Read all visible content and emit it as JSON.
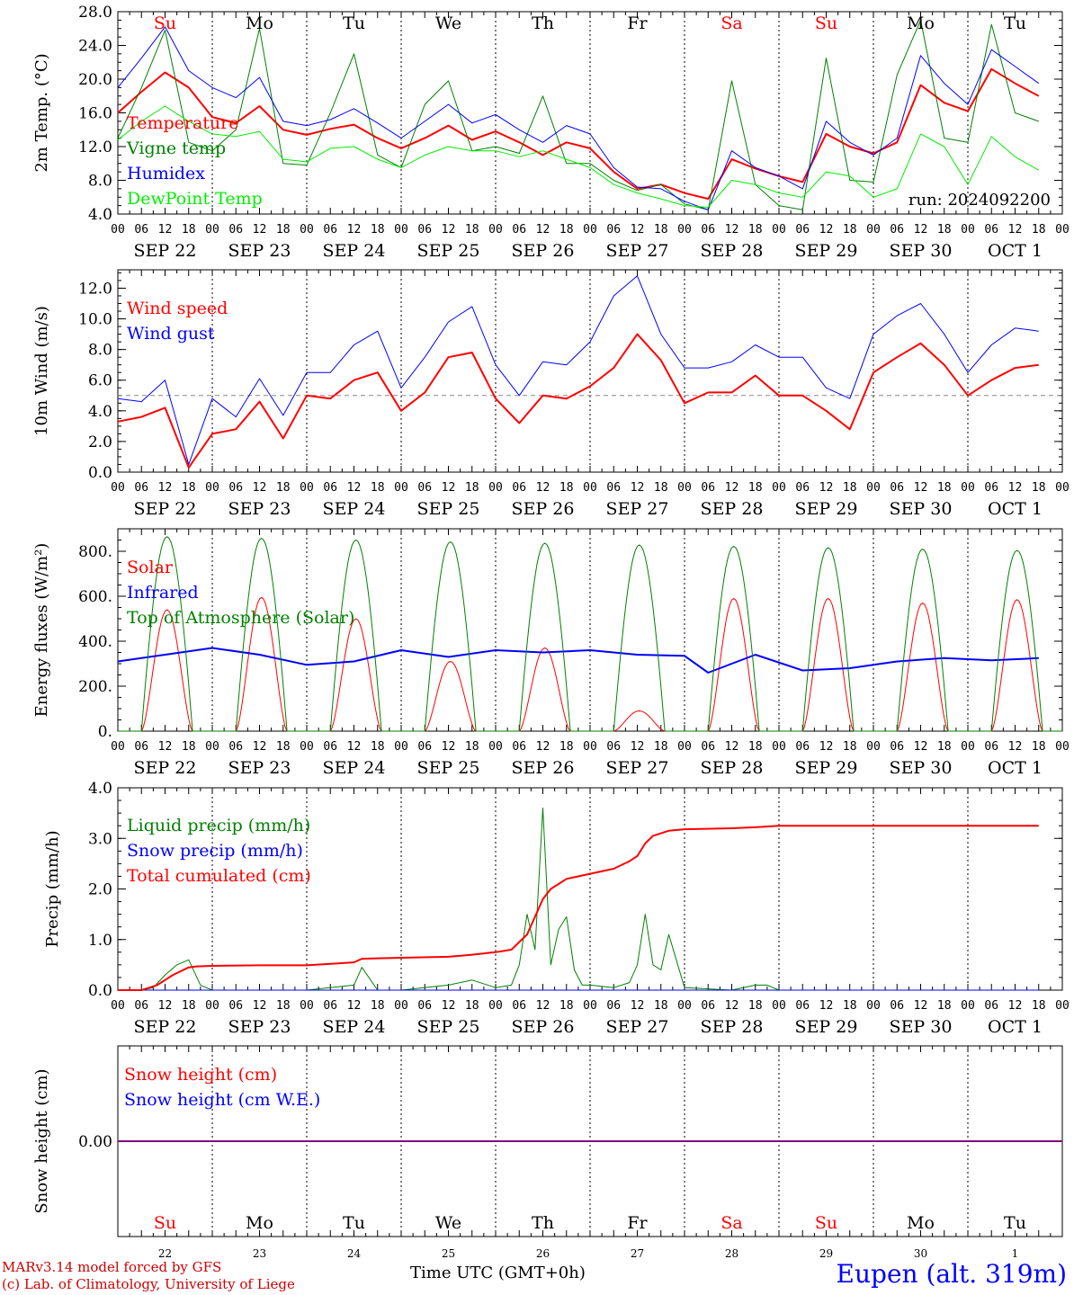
{
  "days": {
    "abbr": [
      "Su",
      "Mo",
      "Tu",
      "We",
      "Th",
      "Fr",
      "Sa",
      "Su",
      "Mo",
      "Tu"
    ],
    "weekend": [
      true,
      false,
      false,
      false,
      false,
      false,
      true,
      true,
      false,
      false
    ],
    "dates": [
      "SEP 22",
      "SEP 23",
      "SEP 24",
      "SEP 25",
      "SEP 26",
      "SEP 27",
      "SEP 28",
      "SEP 29",
      "SEP 30",
      "OCT 1"
    ],
    "numbers": [
      "22",
      "23",
      "24",
      "25",
      "26",
      "27",
      "28",
      "29",
      "30",
      "1"
    ],
    "hour_ticks": [
      "00",
      "06",
      "12",
      "18"
    ],
    "end_tick": "00"
  },
  "chart_data": [
    {
      "type": "line",
      "ylabel": "2m Temp. (°C)",
      "ylim": [
        4,
        28
      ],
      "yticks": [
        "4.0",
        "8.0",
        "12.0",
        "16.0",
        "20.0",
        "24.0",
        "28.0"
      ],
      "annotation": "run: 2024092200",
      "grid": "daily vertical dotted lines",
      "legend_position": "top-left",
      "series": [
        {
          "name": "Temperature",
          "color": "#ff0000",
          "width": 2,
          "x": [
            0,
            6,
            12,
            18,
            24,
            30,
            36,
            42,
            48,
            54,
            60,
            66,
            72,
            78,
            84,
            90,
            96,
            102,
            108,
            114,
            120,
            126,
            132,
            138,
            144,
            150,
            156,
            162,
            168,
            174,
            180,
            186,
            192,
            198,
            204,
            210,
            216,
            222,
            228,
            234
          ],
          "values": [
            16.0,
            18.5,
            20.8,
            19.0,
            15.5,
            14.8,
            16.8,
            14.0,
            13.4,
            14.1,
            14.6,
            13.0,
            11.8,
            13.0,
            14.5,
            12.8,
            13.8,
            12.5,
            11.0,
            12.5,
            11.8,
            9.0,
            7.0,
            7.5,
            6.5,
            5.8,
            10.5,
            9.4,
            8.5,
            7.8,
            13.5,
            12.0,
            11.2,
            12.5,
            19.3,
            17.2,
            16.2,
            21.2,
            19.5,
            18.0
          ]
        },
        {
          "name": "Vigne temp",
          "color": "#008000",
          "width": 1,
          "x": [
            0,
            6,
            12,
            18,
            24,
            30,
            36,
            42,
            48,
            54,
            60,
            66,
            72,
            78,
            84,
            90,
            96,
            102,
            108,
            114,
            120,
            126,
            132,
            138,
            144,
            150,
            156,
            162,
            168,
            174,
            180,
            186,
            192,
            198,
            204,
            210,
            216,
            222,
            228,
            234
          ],
          "values": [
            13.0,
            19.0,
            25.8,
            12.5,
            11.5,
            14.0,
            26.0,
            10.0,
            9.8,
            16.0,
            23.0,
            11.0,
            9.5,
            17.0,
            19.8,
            11.5,
            12.0,
            11.2,
            18.0,
            10.0,
            10.0,
            8.0,
            6.8,
            7.5,
            5.2,
            4.5,
            19.8,
            7.5,
            5.0,
            4.5,
            22.5,
            8.0,
            7.8,
            20.5,
            27.0,
            13.0,
            12.5,
            26.5,
            16.0,
            15.0
          ]
        },
        {
          "name": "Humidex",
          "color": "#0000ff",
          "width": 1,
          "x": [
            0,
            6,
            12,
            18,
            24,
            30,
            36,
            42,
            48,
            54,
            60,
            66,
            72,
            78,
            84,
            90,
            96,
            102,
            108,
            114,
            120,
            126,
            132,
            138,
            144,
            150,
            156,
            162,
            168,
            174,
            180,
            186,
            192,
            198,
            204,
            210,
            216,
            222,
            228,
            234
          ],
          "values": [
            19.0,
            22.5,
            26.2,
            21.0,
            19.0,
            17.8,
            20.2,
            15.0,
            14.5,
            15.2,
            16.5,
            14.8,
            13.0,
            15.0,
            17.0,
            14.8,
            15.8,
            14.0,
            12.5,
            14.5,
            13.5,
            9.5,
            7.2,
            7.0,
            5.5,
            4.5,
            11.5,
            9.5,
            8.5,
            7.0,
            15.0,
            12.5,
            11.0,
            13.0,
            22.8,
            19.5,
            17.0,
            23.5,
            21.5,
            19.5
          ]
        },
        {
          "name": "DewPoint Temp",
          "color": "#00ee00",
          "width": 1,
          "x": [
            0,
            6,
            12,
            18,
            24,
            30,
            36,
            42,
            48,
            54,
            60,
            66,
            72,
            78,
            84,
            90,
            96,
            102,
            108,
            114,
            120,
            126,
            132,
            138,
            144,
            150,
            156,
            162,
            168,
            174,
            180,
            186,
            192,
            198,
            204,
            210,
            216,
            222,
            228,
            234
          ],
          "values": [
            12.8,
            15.0,
            16.8,
            15.0,
            13.5,
            13.2,
            13.8,
            10.5,
            10.2,
            11.8,
            12.0,
            10.5,
            9.5,
            11.0,
            12.0,
            11.5,
            11.5,
            10.8,
            11.5,
            10.5,
            9.5,
            7.5,
            6.5,
            5.8,
            5.0,
            4.8,
            8.0,
            7.5,
            6.5,
            6.0,
            9.0,
            8.5,
            6.0,
            7.0,
            13.5,
            12.0,
            7.5,
            13.2,
            10.8,
            9.2
          ]
        }
      ]
    },
    {
      "type": "line",
      "ylabel": "10m Wind (m/s)",
      "ylim": [
        0,
        13.2
      ],
      "yticks": [
        "0.0",
        "2.0",
        "4.0",
        "6.0",
        "8.0",
        "10.0",
        "12.0"
      ],
      "reference_line": 5.0,
      "legend_position": "top-left",
      "series": [
        {
          "name": "Wind speed",
          "color": "#ff0000",
          "width": 2,
          "x": [
            0,
            6,
            12,
            18,
            24,
            30,
            36,
            42,
            48,
            54,
            60,
            66,
            72,
            78,
            84,
            90,
            96,
            102,
            108,
            114,
            120,
            126,
            132,
            138,
            144,
            150,
            156,
            162,
            168,
            174,
            180,
            186,
            192,
            198,
            204,
            210,
            216,
            222,
            228,
            234
          ],
          "values": [
            3.3,
            3.6,
            4.2,
            0.3,
            2.5,
            2.8,
            4.6,
            2.2,
            5.0,
            4.8,
            6.0,
            6.5,
            4.0,
            5.2,
            7.5,
            7.8,
            4.8,
            3.2,
            5.0,
            4.8,
            5.6,
            6.8,
            9.0,
            7.3,
            4.5,
            5.2,
            5.2,
            6.3,
            5.0,
            5.0,
            4.0,
            2.8,
            6.5,
            7.5,
            8.4,
            7.0,
            5.0,
            6.0,
            6.8,
            7.0
          ]
        },
        {
          "name": "Wind gust",
          "color": "#0000ff",
          "width": 1,
          "x": [
            0,
            6,
            12,
            18,
            24,
            30,
            36,
            42,
            48,
            54,
            60,
            66,
            72,
            78,
            84,
            90,
            96,
            102,
            108,
            114,
            120,
            126,
            132,
            138,
            144,
            150,
            156,
            162,
            168,
            174,
            180,
            186,
            192,
            198,
            204,
            210,
            216,
            222,
            228,
            234
          ],
          "values": [
            4.8,
            4.6,
            6.0,
            0.5,
            4.8,
            3.6,
            6.1,
            3.7,
            6.5,
            6.5,
            8.3,
            9.2,
            5.5,
            7.5,
            9.8,
            10.8,
            7.0,
            5.0,
            7.2,
            7.0,
            8.5,
            11.5,
            12.8,
            9.0,
            6.8,
            6.8,
            7.2,
            8.3,
            7.5,
            7.5,
            5.5,
            4.8,
            9.0,
            10.2,
            11.0,
            9.0,
            6.5,
            8.3,
            9.4,
            9.2
          ]
        }
      ]
    },
    {
      "type": "line",
      "ylabel": "Energy fluxes (W/m²)",
      "ylim": [
        0,
        900
      ],
      "yticks": [
        "0.",
        "200.",
        "400.",
        "600.",
        "800."
      ],
      "legend_position": "top-left",
      "series": [
        {
          "name": "Solar",
          "color": "#ff0000",
          "width": 1,
          "peaks": [
            540,
            595,
            500,
            310,
            370,
            90,
            590,
            590,
            570,
            585
          ]
        },
        {
          "name": "Infrared",
          "color": "#0000ff",
          "width": 2,
          "x": [
            0,
            12,
            24,
            36,
            48,
            60,
            72,
            84,
            96,
            108,
            120,
            132,
            144,
            150,
            162,
            174,
            186,
            198,
            210,
            222,
            234
          ],
          "values": [
            310,
            340,
            370,
            340,
            295,
            310,
            360,
            330,
            360,
            350,
            360,
            340,
            335,
            260,
            340,
            270,
            280,
            310,
            325,
            315,
            325
          ]
        },
        {
          "name": "Top of Atmosphere (Solar)",
          "color": "#008000",
          "width": 1,
          "peaks": [
            865,
            858,
            850,
            842,
            836,
            828,
            822,
            816,
            810,
            804
          ]
        }
      ]
    },
    {
      "type": "line",
      "ylabel": "Precip (mm/h)",
      "ylim": [
        0,
        4
      ],
      "yticks": [
        "0.0",
        "1.0",
        "2.0",
        "3.0",
        "4.0"
      ],
      "legend_position": "top-left",
      "series": [
        {
          "name": "Liquid precip (mm/h)",
          "color": "#008000",
          "width": 1,
          "x": [
            0,
            6,
            9,
            12,
            15,
            18,
            21,
            24,
            30,
            36,
            48,
            60,
            62,
            66,
            72,
            84,
            90,
            96,
            100,
            102,
            104,
            106,
            108,
            110,
            112,
            114,
            116,
            118,
            120,
            126,
            130,
            132,
            134,
            136,
            138,
            140,
            144,
            156,
            162,
            165,
            168,
            234
          ],
          "values": [
            0,
            0,
            0.05,
            0.3,
            0.5,
            0.6,
            0.1,
            0,
            0,
            0,
            0,
            0.1,
            0.45,
            0,
            0,
            0.1,
            0.2,
            0.05,
            0.1,
            0.5,
            1.5,
            0.8,
            3.6,
            0.5,
            1.2,
            1.45,
            0.4,
            0.1,
            0.1,
            0.05,
            0.15,
            0.5,
            1.5,
            0.5,
            0.4,
            1.1,
            0.05,
            0,
            0.1,
            0.1,
            0,
            0
          ]
        },
        {
          "name": "Snow precip (mm/h)",
          "color": "#0000ff",
          "width": 1,
          "x": [
            0,
            234
          ],
          "values": [
            0,
            0
          ]
        },
        {
          "name": "Total cumulated (cm)",
          "color": "#ff0000",
          "width": 2,
          "x": [
            0,
            6,
            10,
            14,
            18,
            20,
            24,
            36,
            48,
            60,
            62,
            66,
            72,
            84,
            90,
            96,
            100,
            104,
            108,
            110,
            114,
            120,
            126,
            130,
            132,
            134,
            136,
            140,
            144,
            156,
            162,
            168,
            234
          ],
          "values": [
            0,
            0,
            0.1,
            0.3,
            0.45,
            0.47,
            0.48,
            0.49,
            0.49,
            0.55,
            0.62,
            0.63,
            0.64,
            0.66,
            0.7,
            0.75,
            0.8,
            1.1,
            1.8,
            2.0,
            2.2,
            2.3,
            2.4,
            2.55,
            2.65,
            2.9,
            3.05,
            3.15,
            3.18,
            3.2,
            3.22,
            3.25,
            3.25
          ]
        }
      ]
    },
    {
      "type": "line",
      "ylabel": "Snow height (cm)",
      "ylim": [
        -1,
        1
      ],
      "yticks": [
        "0.00"
      ],
      "legend_position": "top-left",
      "series": [
        {
          "name": "Snow height (cm)",
          "color": "#ff0000",
          "width": 1,
          "x": [
            0,
            234
          ],
          "values": [
            0,
            0
          ]
        },
        {
          "name": "Snow height (cm W.E.)",
          "color": "#0000ff",
          "width": 1,
          "x": [
            0,
            234
          ],
          "values": [
            0,
            0
          ]
        }
      ]
    }
  ],
  "footer": {
    "model_line1": "MARv3.14 model forced by GFS",
    "model_line2": "(c) Lab. of Climatology, University of Liege",
    "xlabel": "Time UTC (GMT+0h)",
    "location": "Eupen (alt. 319m)"
  },
  "colors": {
    "weekend": "#ff0000",
    "weekday": "#000000",
    "footer_red": "#cc0000",
    "location_blue": "#0000ff"
  }
}
